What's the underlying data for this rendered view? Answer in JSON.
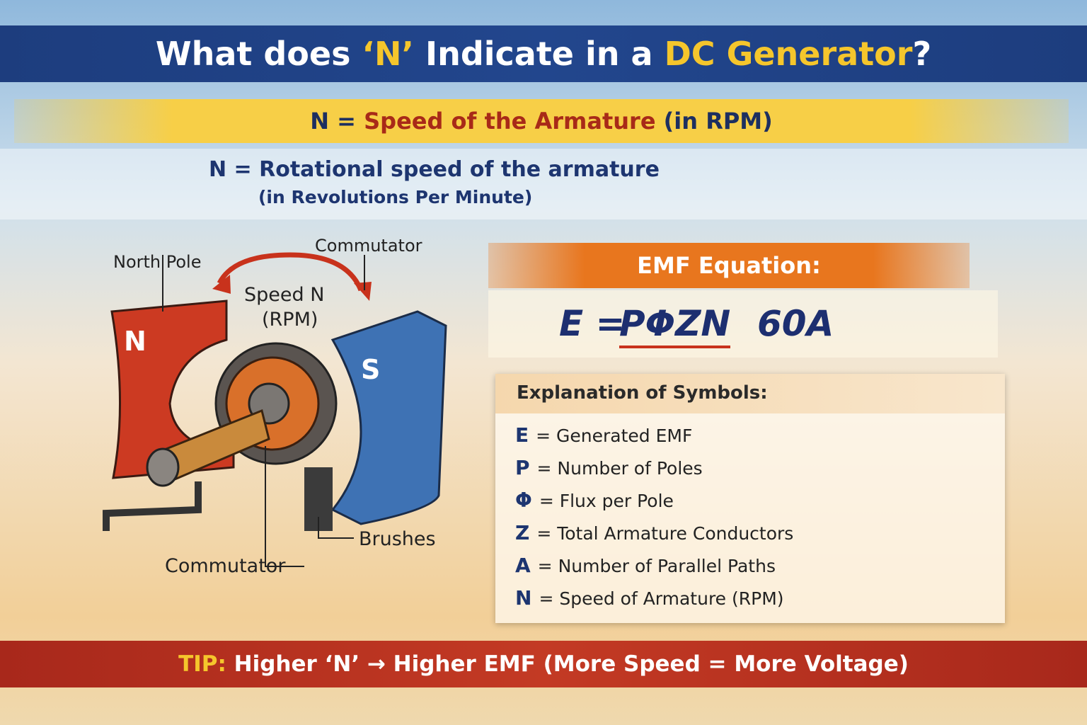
{
  "header": {
    "title": [
      "What does ",
      "‘N’",
      " Indicate in a ",
      "DC Generator",
      "?"
    ]
  },
  "banner": [
    "N = ",
    "Speed of the Armature",
    " (in RPM)"
  ],
  "definition": {
    "line1": "N = Rotational speed of the armature",
    "line2": "(in Revolutions Per Minute)"
  },
  "diagram": {
    "north_pole": "North Pole",
    "commutator_top": "Commutator",
    "speed": [
      "Speed N",
      "(RPM)"
    ],
    "pole_n": "N",
    "pole_s": "S",
    "brushes": "Brushes",
    "commutator_bottom": "Commutator"
  },
  "emf": {
    "heading": "EMF Equation:",
    "equation": [
      "E =",
      "PΦZN",
      "60A"
    ]
  },
  "explanation": {
    "heading": "Explanation of Symbols:",
    "symbols": [
      {
        "symbol": "E",
        "description": "= Generated EMF"
      },
      {
        "symbol": "P",
        "description": "= Number of Poles"
      },
      {
        "symbol": "Φ",
        "description": "= Flux per Pole"
      },
      {
        "symbol": "Z",
        "description": "= Total Armature Conductors"
      },
      {
        "symbol": "A",
        "description": "= Number of Parallel Paths"
      },
      {
        "symbol": "N",
        "description": "= Speed of Armature (RPM)"
      }
    ]
  },
  "tip": [
    "TIP:",
    " Higher ‘N’ → Higher EMF (More Speed = More Voltage)"
  ]
}
